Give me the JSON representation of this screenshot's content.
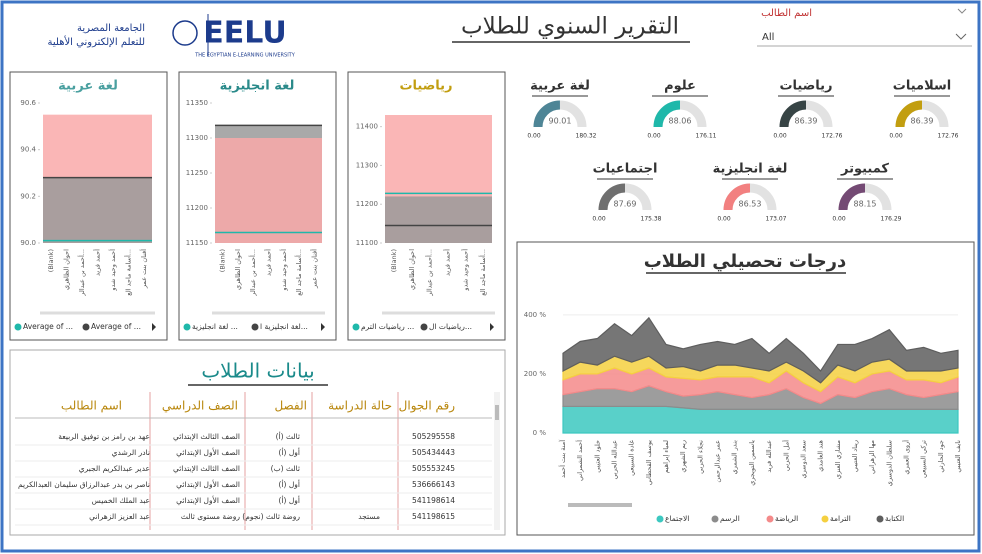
{
  "header": {
    "title": "التقرير السنوي للطلاب",
    "logo": "EELU",
    "logo_subtitle": "THE EGYPTIAN E-LEARNING UNIVERSITY",
    "university_line1": "الجامعة المصرية",
    "university_line2": "للتعلم الإلكتروني الأهلية"
  },
  "filter": {
    "label": "اسم الطالب",
    "value": "All"
  },
  "gauges": [
    {
      "title": "لغة عربية",
      "value": 90.01,
      "min": {
        "value": 0,
        "label": "0.00"
      },
      "max": 180.32,
      "color": "#4e8596"
    },
    {
      "title": "علوم",
      "value": 88.06,
      "min": {
        "value": 0,
        "label": "0.00"
      },
      "max": 176.11,
      "color": "#1fb8aa"
    },
    {
      "title": "رياضيات",
      "value": 86.39,
      "min": {
        "value": 0,
        "label": "0.00"
      },
      "max": 172.76,
      "color": "#374445"
    },
    {
      "title": "اسلاميات",
      "value": 86.39,
      "min": {
        "value": 0,
        "label": "0.00"
      },
      "max": 172.76,
      "color": "#c29e10"
    },
    {
      "title": "اجتماعيات",
      "value": 87.69,
      "min": {
        "value": 0,
        "label": "0.00"
      },
      "max": 175.38,
      "color": "#6f6f6f"
    },
    {
      "title": "لغة انجليزية",
      "value": 86.53,
      "min": {
        "value": 0,
        "label": "0.00"
      },
      "max": 173.07,
      "color": "#f28080"
    },
    {
      "title": "كمبيوتر",
      "value": 88.15,
      "min": {
        "value": 0,
        "label": "0.00"
      },
      "max": 176.29,
      "color": "#744a74"
    }
  ],
  "mini_charts": [
    {
      "type": "bar",
      "title": "لغة عربية",
      "title_color": "#4aa0a0",
      "ylim": [
        90,
        90.6
      ],
      "yticks": [
        {
          "value": 90,
          "label": "90.0"
        },
        {
          "value": 90.2,
          "label": "90.2"
        },
        {
          "value": 90.4,
          "label": "90.4"
        },
        {
          "value": 90.6,
          "label": "90.6"
        }
      ],
      "categories": [
        "(Blank)",
        "احوان الظاهري",
        "أحمد بن عبدالر...",
        "أحمد فريد",
        "أحمد وحيد شدو",
        "أسامة ماجد الع...",
        "أفنان بنت عمر"
      ],
      "series": [
        {
          "color": "#f9a9a9",
          "values": [
            90.55
          ]
        },
        {
          "color": "#9a9a9a",
          "values": [
            90.28
          ]
        },
        {
          "name": "Average of ...",
          "color": "#1fb8aa",
          "values": [
            90.01
          ]
        },
        {
          "name": "Average of ...",
          "color": "#444444",
          "values": [
            90.28
          ]
        }
      ]
    },
    {
      "type": "bar",
      "title": "لغة انجليزية",
      "title_color": "#2a8a8a",
      "ylim": [
        11150,
        11350
      ],
      "yticks": [
        11150,
        11200,
        11250,
        11300,
        11350
      ],
      "categories": [
        "(Blank)",
        "احوان الظاهري",
        "أحمد بن عبدالر...",
        "أحمد فريد",
        "أحمد وحيد شدو",
        "أسامة ماجد الع...",
        "أفنان بنت عمر"
      ],
      "series": [
        {
          "color": "#9a9a9a",
          "values": [
            11318
          ]
        },
        {
          "color": "#f9a9a9",
          "values": [
            11300
          ]
        },
        {
          "name": "لغة انجليزية ...",
          "color": "#1fb8aa",
          "values": [
            11165
          ]
        },
        {
          "name": "لغة انجليزية ا...",
          "color": "#444444",
          "values": [
            11318
          ]
        }
      ]
    },
    {
      "type": "bar",
      "title": "رياضيات",
      "title_color": "#c29e10",
      "ylim": [
        11100,
        11430
      ],
      "yticks": [
        11100,
        11200,
        11300,
        11400
      ],
      "categories": [
        "(Blank)",
        "احوان الظاهري",
        "أحمد بن عبدالر...",
        "أحمد فريد",
        "أحمد وحيد شدو",
        "أسامة ماجد الع..."
      ],
      "series": [
        {
          "color": "#f9a9a9",
          "values": [
            11430
          ]
        },
        {
          "color": "#9a9a9a",
          "values": [
            11220
          ]
        },
        {
          "name": "رياضيات الترم ...",
          "color": "#1fb8aa",
          "values": [
            11228
          ]
        },
        {
          "name": "رياضيات ال...",
          "color": "#444444",
          "values": [
            11145
          ]
        }
      ]
    }
  ],
  "area_chart": {
    "type": "area",
    "title": "درجات تحصيلي الطلاب",
    "ylim": [
      0,
      420
    ],
    "yticks": [
      {
        "value": 0,
        "label": "0 %"
      },
      {
        "value": 200,
        "label": "200 %"
      },
      {
        "value": 400,
        "label": "400 %"
      }
    ],
    "categories": [
      "آمنة بنت أحمد",
      "أحمد الشمراني",
      "خلود العتيبي",
      "عبدالله الحربي",
      "غادة السبيعي",
      "يوسف القحطاني",
      "لمياء إبراهيم",
      "ريم الشهري",
      "نجلاء الحربي",
      "عمر عبدالرحمن",
      "بندر الشمري",
      "ياسمين التويجري",
      "عبدالله فريد",
      "أمل الحربي",
      "سعد الدوسري",
      "هند الغامدي",
      "مشاري العنزي",
      "ريناد العتيبي",
      "مها الزهراني",
      "سلطان الدوسري",
      "أروى العمري",
      "تركي السبيعي",
      "جود الحارثي",
      "نايف العتيبي"
    ],
    "series": [
      {
        "name": "الاجتماع",
        "color": "#3cc8c0",
        "values": [
          90,
          90,
          90,
          90,
          90,
          90,
          90,
          85,
          80,
          80,
          80,
          80,
          80,
          80,
          80,
          80,
          80,
          80,
          80,
          80,
          80,
          80,
          80,
          80
        ]
      },
      {
        "name": "الرسم",
        "color": "#8c8c8c",
        "values": [
          40,
          50,
          60,
          60,
          50,
          70,
          50,
          40,
          50,
          60,
          50,
          40,
          50,
          70,
          40,
          20,
          50,
          40,
          60,
          70,
          50,
          40,
          50,
          60
        ]
      },
      {
        "name": "الرياضة",
        "color": "#f48a8a",
        "values": [
          50,
          60,
          50,
          70,
          60,
          60,
          50,
          60,
          50,
          50,
          60,
          70,
          40,
          60,
          50,
          40,
          60,
          50,
          60,
          60,
          50,
          60,
          40,
          50
        ]
      },
      {
        "name": "الترامة",
        "color": "#f5d040",
        "values": [
          30,
          40,
          30,
          40,
          40,
          40,
          30,
          40,
          30,
          40,
          40,
          30,
          40,
          30,
          40,
          30,
          40,
          40,
          40,
          40,
          30,
          30,
          40,
          30
        ]
      },
      {
        "name": "الكتابة",
        "color": "#5e5e5e",
        "values": [
          60,
          70,
          90,
          110,
          90,
          130,
          80,
          60,
          90,
          80,
          70,
          100,
          60,
          80,
          60,
          40,
          70,
          90,
          80,
          100,
          70,
          80,
          60,
          60
        ]
      }
    ]
  },
  "table": {
    "title": "بيانات الطلاب",
    "columns": [
      "رقم الجوال",
      "حالة الدراسة",
      "الفصل",
      "الصف الدراسي",
      "اسم الطالب"
    ],
    "rows": [
      [
        "505295558",
        null,
        "ثالث (أ)",
        "الصف الثالث الإبتدائي",
        "عهد بن رامز بن توفيق الربيعة"
      ],
      [
        "505434443",
        null,
        "أول (أ)",
        "الصف الأول الإبتدائي",
        "نادر الرشدي"
      ],
      [
        "505553245",
        null,
        "ثالث (ب)",
        "الصف الثالث الإبتدائي",
        "عدير عبدالكريم الجبري"
      ],
      [
        "536666143",
        null,
        "أول (أ)",
        "الصف الأول الإبتدائي",
        "ناصر بن بدر عبدالرزاق سليمان العبدالكريم"
      ],
      [
        "541198614",
        null,
        "أول (أ)",
        "الصف الأول الإبتدائي",
        "عبد الملك الخميس"
      ],
      [
        "541198615",
        "مستجد",
        "روضة ثالث (نجوم)",
        "روضة مستوى ثالث",
        "عبد العزيز الزهراني"
      ]
    ]
  }
}
